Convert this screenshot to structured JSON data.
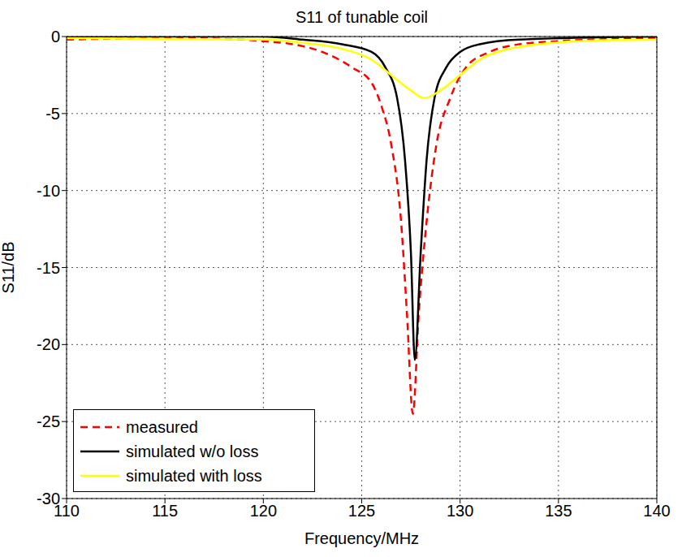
{
  "chart_data": {
    "type": "line",
    "title": "S11 of tunable coil",
    "x_label": "Frequency/MHz",
    "y_label": "S11/dB",
    "xlim": [
      110,
      140
    ],
    "xticks": [
      110,
      115,
      120,
      125,
      130,
      135,
      140
    ],
    "ylim": [
      -30,
      0
    ],
    "yticks": [
      -30,
      -25,
      -20,
      -15,
      -10,
      -5,
      0
    ],
    "grid": true,
    "legend": "lower left",
    "series": [
      {
        "name": "measured",
        "color": "#ff0000",
        "line_style": "dashed",
        "x": [
          110,
          115,
          119,
          120,
          121.5,
          123,
          124.5,
          125.5,
          126,
          126.5,
          127,
          127.3,
          127.6,
          127.9,
          128.3,
          128.8,
          129.5,
          130.3,
          131.5,
          133,
          135,
          140
        ],
        "values": [
          -0.2,
          -0.1,
          -0.2,
          -0.3,
          -0.5,
          -1,
          -2,
          -3,
          -4.5,
          -7,
          -12,
          -18,
          -24.5,
          -18,
          -12,
          -7,
          -4,
          -2,
          -1,
          -0.5,
          -0.3,
          -0.1
        ]
      },
      {
        "name": "simulated w/o loss",
        "color": "#000000",
        "line_style": "solid",
        "x": [
          110,
          120,
          122,
          124,
          125.5,
          126.2,
          126.8,
          127.2,
          127.5,
          127.7,
          128,
          128.3,
          128.7,
          129.3,
          130,
          131,
          133,
          140
        ],
        "values": [
          0,
          0,
          -0.2,
          -0.5,
          -1,
          -2,
          -4,
          -8,
          -14,
          -21,
          -14,
          -8,
          -4,
          -2,
          -1,
          -0.5,
          -0.2,
          0
        ]
      },
      {
        "name": "simulated with loss",
        "color": "#ffff00",
        "line_style": "solid",
        "x": [
          110,
          120,
          122,
          124,
          125.5,
          126.5,
          127.5,
          128.2,
          129,
          130,
          131,
          132.5,
          134,
          136,
          140
        ],
        "values": [
          -0.1,
          -0.2,
          -0.4,
          -0.8,
          -1.5,
          -2.5,
          -3.5,
          -4,
          -3.5,
          -2.5,
          -1.5,
          -0.8,
          -0.5,
          -0.3,
          -0.2
        ]
      }
    ]
  }
}
